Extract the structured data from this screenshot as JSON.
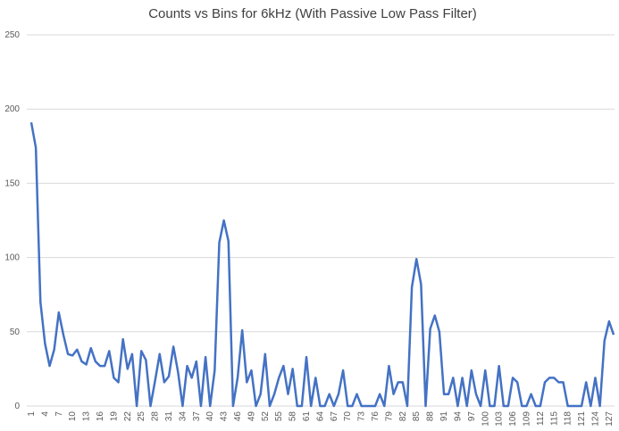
{
  "chart_data": {
    "type": "line",
    "title": "Counts vs Bins for 6kHz (With Passive Low Pass Filter)",
    "categories": [
      1,
      null,
      null,
      4,
      null,
      null,
      7,
      null,
      null,
      10,
      null,
      null,
      13,
      null,
      null,
      16,
      null,
      null,
      19,
      null,
      null,
      22,
      null,
      null,
      25,
      null,
      null,
      28,
      null,
      null,
      31,
      null,
      null,
      34,
      null,
      null,
      37,
      null,
      null,
      40,
      null,
      null,
      43,
      null,
      null,
      46,
      null,
      null,
      49,
      null,
      null,
      52,
      null,
      null,
      55,
      null,
      null,
      58,
      null,
      null,
      61,
      null,
      null,
      64,
      null,
      null,
      67,
      null,
      null,
      70,
      null,
      null,
      73,
      null,
      null,
      76,
      null,
      null,
      79,
      null,
      null,
      82,
      null,
      null,
      85,
      null,
      null,
      88,
      null,
      null,
      91,
      null,
      null,
      94,
      null,
      null,
      97,
      null,
      null,
      100,
      null,
      null,
      103,
      null,
      null,
      106,
      null,
      null,
      109,
      null,
      null,
      112,
      null,
      null,
      115,
      null,
      null,
      118,
      null,
      null,
      121,
      null,
      null,
      124,
      null,
      null,
      127,
      null
    ],
    "series": [
      {
        "color": "#4472c4",
        "values": [
          191,
          174,
          70,
          42,
          27,
          38,
          63,
          48,
          35,
          34,
          38,
          30,
          28,
          39,
          30,
          27,
          27,
          37,
          19,
          16,
          45,
          25,
          35,
          0,
          37,
          31,
          0,
          17,
          35,
          16,
          20,
          40,
          23,
          0,
          27,
          19,
          30,
          0,
          33,
          0,
          24,
          110,
          125,
          111,
          0,
          19,
          51,
          16,
          24,
          0,
          8,
          35,
          0,
          8,
          19,
          27,
          8,
          25,
          0,
          0,
          33,
          0,
          19,
          0,
          0,
          8,
          0,
          8,
          24,
          0,
          0,
          8,
          0,
          0,
          0,
          0,
          8,
          0,
          27,
          8,
          16,
          16,
          0,
          80,
          99,
          82,
          0,
          52,
          61,
          50,
          8,
          8,
          19,
          0,
          19,
          0,
          24,
          8,
          0,
          24,
          0,
          0,
          27,
          0,
          0,
          19,
          16,
          0,
          0,
          8,
          0,
          0,
          16,
          19,
          19,
          16,
          16,
          0,
          0,
          0,
          0,
          16,
          0,
          19,
          0,
          44,
          57,
          48
        ]
      }
    ],
    "ylim": [
      0,
      250
    ],
    "yticks": [
      0,
      50,
      100,
      150,
      200,
      250
    ],
    "grid": true
  }
}
